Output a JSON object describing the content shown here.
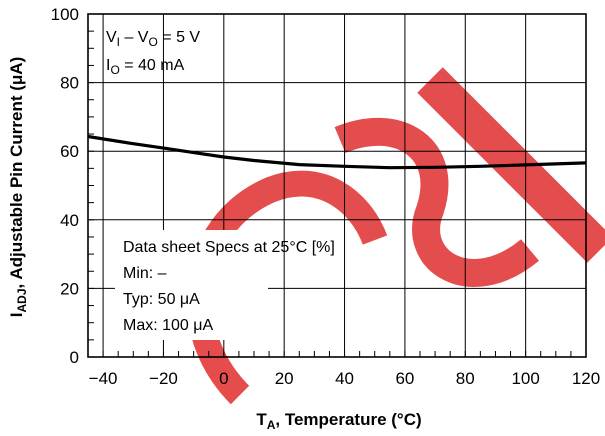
{
  "chart_data": {
    "type": "line",
    "xlabel": {
      "main": "T",
      "sub": "A",
      "rest": ", Temperature (°C)"
    },
    "ylabel": {
      "main": "I",
      "sub": "ADJ",
      "rest": ", Adjustable Pin Current (μA)"
    },
    "xlim": [
      -45,
      120
    ],
    "ylim": [
      0,
      100
    ],
    "xticks": [
      "−40",
      "−20",
      "0",
      "20",
      "40",
      "60",
      "80",
      "100",
      "120"
    ],
    "xtick_values": [
      -40,
      -20,
      0,
      20,
      40,
      60,
      80,
      100,
      120
    ],
    "yticks": [
      "0",
      "20",
      "40",
      "60",
      "80",
      "100"
    ],
    "ytick_values": [
      0,
      20,
      40,
      60,
      80,
      100
    ],
    "grid": true,
    "series": [
      {
        "x": [
          -45,
          -30,
          -20,
          -10,
          0,
          10,
          25,
          40,
          55,
          70,
          85,
          100,
          120
        ],
        "y": [
          64.3,
          62.2,
          60.9,
          59.6,
          58.3,
          57.3,
          56.1,
          55.6,
          55.2,
          55.3,
          55.6,
          56.0,
          56.6
        ]
      }
    ],
    "conditions": {
      "line1": {
        "a": "V",
        "a_sub": "I",
        "mid": " – V",
        "b_sub": "O",
        "rest": " = 5 V"
      },
      "line2": {
        "a": "I",
        "a_sub": "O",
        "rest": " = 40 mA"
      }
    },
    "specs": {
      "title": "Data sheet Specs at 25°C [%]",
      "min": "Min: –",
      "typ": "Typ: 50 μA",
      "max": "Max: 100 μA"
    },
    "colors": {
      "line": "#000000",
      "grid": "#000000",
      "watermark": "#e03030"
    }
  }
}
